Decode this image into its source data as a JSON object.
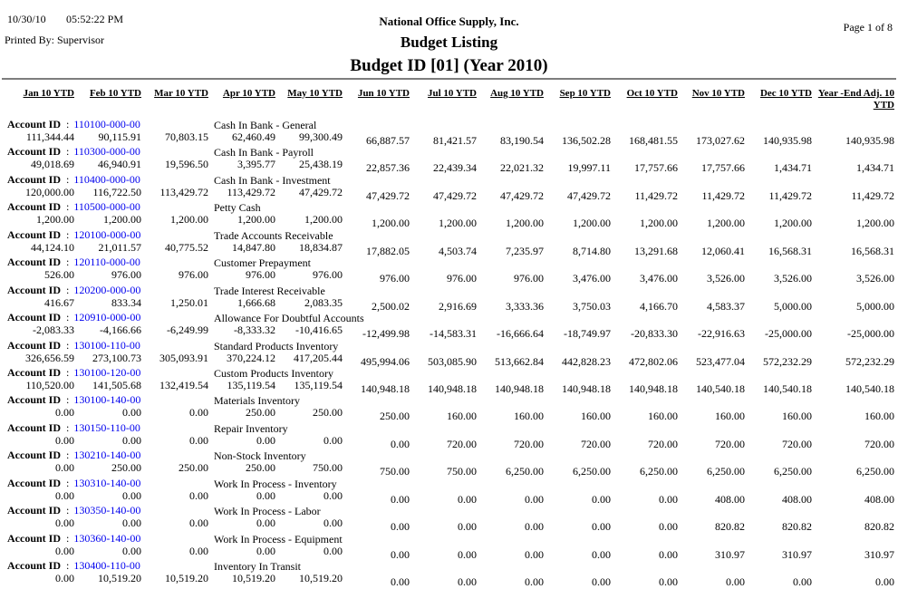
{
  "header": {
    "date": "10/30/10",
    "time": "05:52:22 PM",
    "printed_by": "Printed By: Supervisor",
    "company": "National Office Supply, Inc.",
    "title": "Budget Listing",
    "subtitle": "Budget ID [01] (Year 2010)",
    "page": "Page 1 of 8"
  },
  "colors": {
    "account_id_blue": "#0000EE",
    "rule_gray": "#7d7d7d"
  },
  "table": {
    "account_id_label": "Account ID",
    "separator": ":",
    "columns": [
      "Jan 10 YTD",
      "Feb 10 YTD",
      "Mar 10 YTD",
      "Apr 10 YTD",
      "May 10 YTD",
      "Jun 10 YTD",
      "Jul 10 YTD",
      "Aug 10 YTD",
      "Sep 10 YTD",
      "Oct 10 YTD",
      "Nov 10 YTD",
      "Dec 10 YTD"
    ],
    "last_column": [
      "Year -End Adj. 10",
      "YTD"
    ],
    "rows": [
      {
        "account_id": "110100-000-00",
        "description": "Cash In Bank - General",
        "values": [
          "111,344.44",
          "90,115.91",
          "70,803.15",
          "62,460.49",
          "99,300.49",
          "66,887.57",
          "81,421.57",
          "83,190.54",
          "136,502.28",
          "168,481.55",
          "173,027.62",
          "140,935.98",
          "140,935.98"
        ]
      },
      {
        "account_id": "110300-000-00",
        "description": "Cash In Bank - Payroll",
        "values": [
          "49,018.69",
          "46,940.91",
          "19,596.50",
          "3,395.77",
          "25,438.19",
          "22,857.36",
          "22,439.34",
          "22,021.32",
          "19,997.11",
          "17,757.66",
          "17,757.66",
          "1,434.71",
          "1,434.71"
        ]
      },
      {
        "account_id": "110400-000-00",
        "description": "Cash In Bank - Investment",
        "values": [
          "120,000.00",
          "116,722.50",
          "113,429.72",
          "113,429.72",
          "47,429.72",
          "47,429.72",
          "47,429.72",
          "47,429.72",
          "47,429.72",
          "11,429.72",
          "11,429.72",
          "11,429.72",
          "11,429.72"
        ]
      },
      {
        "account_id": "110500-000-00",
        "description": "Petty Cash",
        "values": [
          "1,200.00",
          "1,200.00",
          "1,200.00",
          "1,200.00",
          "1,200.00",
          "1,200.00",
          "1,200.00",
          "1,200.00",
          "1,200.00",
          "1,200.00",
          "1,200.00",
          "1,200.00",
          "1,200.00"
        ]
      },
      {
        "account_id": "120100-000-00",
        "description": "Trade Accounts Receivable",
        "values": [
          "44,124.10",
          "21,011.57",
          "40,775.52",
          "14,847.80",
          "18,834.87",
          "17,882.05",
          "4,503.74",
          "7,235.97",
          "8,714.80",
          "13,291.68",
          "12,060.41",
          "16,568.31",
          "16,568.31"
        ]
      },
      {
        "account_id": "120110-000-00",
        "description": "Customer Prepayment",
        "values": [
          "526.00",
          "976.00",
          "976.00",
          "976.00",
          "976.00",
          "976.00",
          "976.00",
          "976.00",
          "3,476.00",
          "3,476.00",
          "3,526.00",
          "3,526.00",
          "3,526.00"
        ]
      },
      {
        "account_id": "120200-000-00",
        "description": "Trade Interest Receivable",
        "values": [
          "416.67",
          "833.34",
          "1,250.01",
          "1,666.68",
          "2,083.35",
          "2,500.02",
          "2,916.69",
          "3,333.36",
          "3,750.03",
          "4,166.70",
          "4,583.37",
          "5,000.00",
          "5,000.00"
        ]
      },
      {
        "account_id": "120910-000-00",
        "description": "Allowance For Doubtful Accounts",
        "values": [
          "-2,083.33",
          "-4,166.66",
          "-6,249.99",
          "-8,333.32",
          "-10,416.65",
          "-12,499.98",
          "-14,583.31",
          "-16,666.64",
          "-18,749.97",
          "-20,833.30",
          "-22,916.63",
          "-25,000.00",
          "-25,000.00"
        ]
      },
      {
        "account_id": "130100-110-00",
        "description": "Standard Products Inventory",
        "values": [
          "326,656.59",
          "273,100.73",
          "305,093.91",
          "370,224.12",
          "417,205.44",
          "495,994.06",
          "503,085.90",
          "513,662.84",
          "442,828.23",
          "472,802.06",
          "523,477.04",
          "572,232.29",
          "572,232.29"
        ]
      },
      {
        "account_id": "130100-120-00",
        "description": "Custom Products Inventory",
        "values": [
          "110,520.00",
          "141,505.68",
          "132,419.54",
          "135,119.54",
          "135,119.54",
          "140,948.18",
          "140,948.18",
          "140,948.18",
          "140,948.18",
          "140,948.18",
          "140,540.18",
          "140,540.18",
          "140,540.18"
        ]
      },
      {
        "account_id": "130100-140-00",
        "description": "Materials Inventory",
        "values": [
          "0.00",
          "0.00",
          "0.00",
          "250.00",
          "250.00",
          "250.00",
          "160.00",
          "160.00",
          "160.00",
          "160.00",
          "160.00",
          "160.00",
          "160.00"
        ]
      },
      {
        "account_id": "130150-110-00",
        "description": "Repair Inventory",
        "values": [
          "0.00",
          "0.00",
          "0.00",
          "0.00",
          "0.00",
          "0.00",
          "720.00",
          "720.00",
          "720.00",
          "720.00",
          "720.00",
          "720.00",
          "720.00"
        ]
      },
      {
        "account_id": "130210-140-00",
        "description": "Non-Stock Inventory",
        "values": [
          "0.00",
          "250.00",
          "250.00",
          "250.00",
          "750.00",
          "750.00",
          "750.00",
          "6,250.00",
          "6,250.00",
          "6,250.00",
          "6,250.00",
          "6,250.00",
          "6,250.00"
        ]
      },
      {
        "account_id": "130310-140-00",
        "description": "Work In Process - Inventory",
        "values": [
          "0.00",
          "0.00",
          "0.00",
          "0.00",
          "0.00",
          "0.00",
          "0.00",
          "0.00",
          "0.00",
          "0.00",
          "408.00",
          "408.00",
          "408.00"
        ]
      },
      {
        "account_id": "130350-140-00",
        "description": "Work In Process - Labor",
        "values": [
          "0.00",
          "0.00",
          "0.00",
          "0.00",
          "0.00",
          "0.00",
          "0.00",
          "0.00",
          "0.00",
          "0.00",
          "820.82",
          "820.82",
          "820.82"
        ]
      },
      {
        "account_id": "130360-140-00",
        "description": "Work In Process - Equipment",
        "values": [
          "0.00",
          "0.00",
          "0.00",
          "0.00",
          "0.00",
          "0.00",
          "0.00",
          "0.00",
          "0.00",
          "0.00",
          "310.97",
          "310.97",
          "310.97"
        ]
      },
      {
        "account_id": "130400-110-00",
        "description": "Inventory In Transit",
        "values": [
          "0.00",
          "10,519.20",
          "10,519.20",
          "10,519.20",
          "10,519.20",
          "0.00",
          "0.00",
          "0.00",
          "0.00",
          "0.00",
          "0.00",
          "0.00",
          "0.00"
        ]
      }
    ]
  }
}
